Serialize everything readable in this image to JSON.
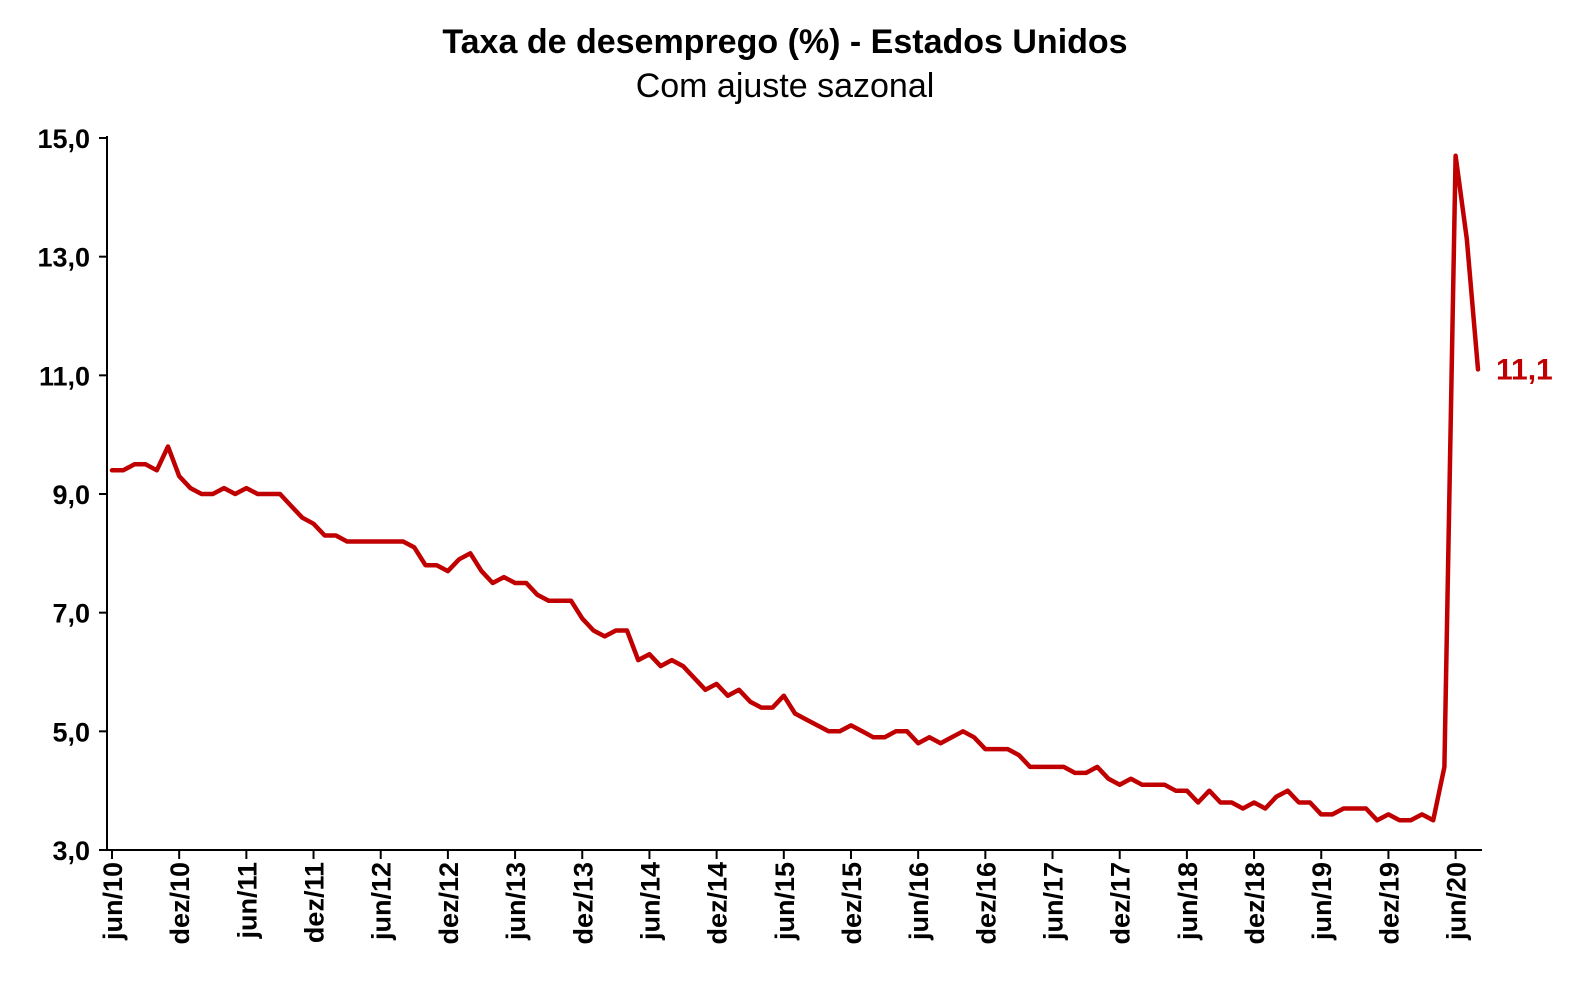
{
  "chart_data": {
    "type": "line",
    "title": "Taxa de desemprego (%) - Estados Unidos",
    "subtitle": "Com ajuste sazonal",
    "xlabel": "",
    "ylabel": "",
    "ylim": [
      3.0,
      15.0
    ],
    "yticks": [
      "3,0",
      "5,0",
      "7,0",
      "9,0",
      "11,0",
      "13,0",
      "15,0"
    ],
    "ytick_values": [
      3,
      5,
      7,
      9,
      11,
      13,
      15
    ],
    "grid": false,
    "legend": "none",
    "x_start": "jun/10",
    "x_end": "jun/20",
    "xticks": [
      "jun/10",
      "dez/10",
      "jun/11",
      "dez/11",
      "jun/12",
      "dez/12",
      "jun/13",
      "dez/13",
      "jun/14",
      "dez/14",
      "jun/15",
      "dez/15",
      "jun/16",
      "dez/16",
      "jun/17",
      "dez/17",
      "jun/18",
      "dez/18",
      "jun/19",
      "dez/19",
      "jun/20"
    ],
    "series": [
      {
        "color": "#C00000",
        "values": [
          9.4,
          9.4,
          9.5,
          9.5,
          9.4,
          9.8,
          9.3,
          9.1,
          9.0,
          9.0,
          9.1,
          9.0,
          9.1,
          9.0,
          9.0,
          9.0,
          8.8,
          8.6,
          8.5,
          8.3,
          8.3,
          8.2,
          8.2,
          8.2,
          8.2,
          8.2,
          8.2,
          8.1,
          7.8,
          7.8,
          7.7,
          7.9,
          8.0,
          7.7,
          7.5,
          7.6,
          7.5,
          7.5,
          7.3,
          7.2,
          7.2,
          7.2,
          6.9,
          6.7,
          6.6,
          6.7,
          6.7,
          6.2,
          6.3,
          6.1,
          6.2,
          6.1,
          5.9,
          5.7,
          5.8,
          5.6,
          5.7,
          5.5,
          5.4,
          5.4,
          5.6,
          5.3,
          5.2,
          5.1,
          5.0,
          5.0,
          5.1,
          5.0,
          4.9,
          4.9,
          5.0,
          5.0,
          4.8,
          4.9,
          4.8,
          4.9,
          5.0,
          4.9,
          4.7,
          4.7,
          4.7,
          4.6,
          4.4,
          4.4,
          4.4,
          4.4,
          4.3,
          4.3,
          4.4,
          4.2,
          4.1,
          4.2,
          4.1,
          4.1,
          4.1,
          4.0,
          4.0,
          3.8,
          4.0,
          3.8,
          3.8,
          3.7,
          3.8,
          3.7,
          3.9,
          4.0,
          3.8,
          3.8,
          3.6,
          3.6,
          3.7,
          3.7,
          3.7,
          3.5,
          3.6,
          3.5,
          3.5,
          3.6,
          3.5,
          4.4,
          14.7,
          13.3,
          11.1
        ],
        "end_label": "11,1"
      }
    ]
  }
}
